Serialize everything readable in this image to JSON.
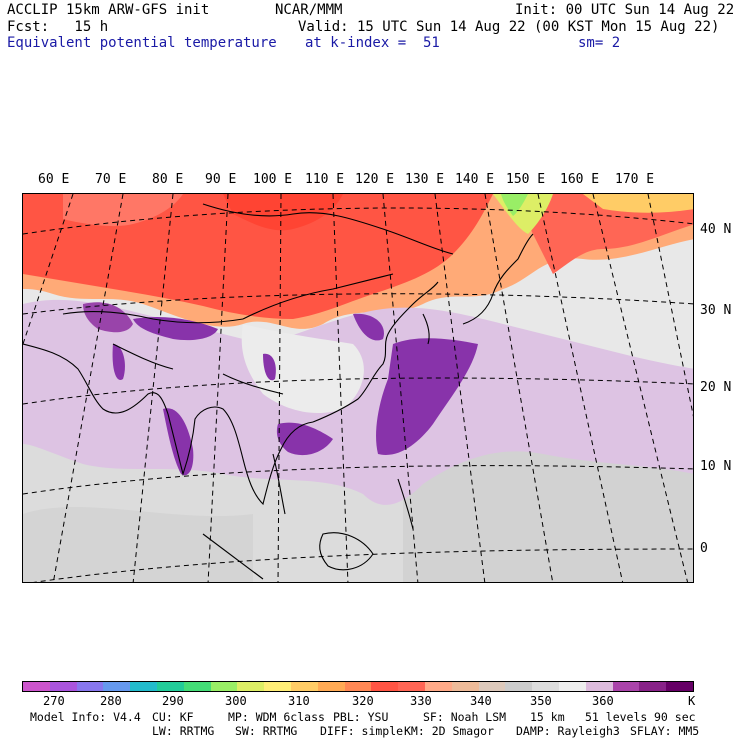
{
  "header": {
    "line1_left": "ACCLIP 15km ARW-GFS init",
    "line1_center": "NCAR/MMM",
    "line1_right": "Init: 00 UTC Sun 14 Aug 22",
    "line2_left": "Fcst:   15 h",
    "line2_right": "Valid: 15 UTC Sun 14 Aug 22 (00 KST Mon 15 Aug 22)",
    "line3_field": "Equivalent potential temperature",
    "line3_level": "at k-index =  51",
    "line3_smooth": "sm= 2"
  },
  "map": {
    "lon_labels": [
      "60 E",
      "70 E",
      "80 E",
      "90 E",
      "100 E",
      "110 E",
      "120 E",
      "130 E",
      "140 E",
      "150 E",
      "160 E",
      "170 E"
    ],
    "lat_labels": [
      "40 N",
      "30 N",
      "20 N",
      "10 N",
      "0"
    ]
  },
  "colorbar": {
    "colors": [
      "#cc55cc",
      "#aa55dd",
      "#8877ee",
      "#6699ee",
      "#22bbcc",
      "#22cc99",
      "#44dd77",
      "#99ee66",
      "#ddee66",
      "#ffee77",
      "#ffcc66",
      "#ffaa55",
      "#ff8855",
      "#ff5544",
      "#ff6655",
      "#ffaa88",
      "#eebb99",
      "#ddc9bb",
      "#cccccc",
      "#dddddd",
      "#eeeeee",
      "#ddbbdd",
      "#aa44aa",
      "#882288",
      "#660066"
    ],
    "tick_labels": [
      "270",
      "280",
      "290",
      "300",
      "310",
      "320",
      "330",
      "340",
      "350",
      "360"
    ],
    "unit": "K"
  },
  "footer": {
    "line1": [
      "Model Info: V4.4",
      "CU: KF",
      "MP: WDM 6class",
      "PBL: YSU",
      "SF: Noah LSM",
      "15 km",
      "51 levels",
      "90 sec"
    ],
    "line2": [
      "LW: RRTMG",
      "SW: RRTMG",
      "DIFF: simple",
      "KM: 2D Smagor",
      "DAMP: Rayleigh3",
      "SFLAY: MM5"
    ]
  }
}
